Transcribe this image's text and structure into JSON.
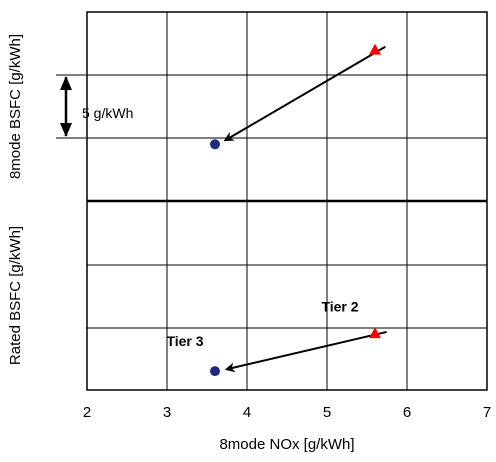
{
  "chart_data": {
    "type": "scatter",
    "x_axis": {
      "label": "8mode NOx [g/kWh]",
      "range": [
        2,
        7
      ],
      "ticks": [
        "2",
        "3",
        "4",
        "5",
        "6",
        "7"
      ]
    },
    "panels": [
      {
        "ylabel": "8mode BSFC [g/kWh]",
        "scale_annotation": "5  g/kWh",
        "points": [
          {
            "x": 5.6,
            "y_rel": 0.8,
            "marker": "triangle",
            "color": "#ff0000"
          },
          {
            "x": 3.6,
            "y_rel": 0.3,
            "marker": "circle",
            "color": "#1f2a80"
          }
        ],
        "arrow": {
          "from": 0,
          "to": 1
        }
      },
      {
        "ylabel": "Rated BSFC [g/kWh]",
        "points": [
          {
            "x": 5.6,
            "y_rel": 0.3,
            "marker": "triangle",
            "color": "#ff0000",
            "label": "Tier 2"
          },
          {
            "x": 3.6,
            "y_rel": 0.1,
            "marker": "circle",
            "color": "#1f2a80",
            "label": "Tier 3"
          }
        ],
        "arrow": {
          "from": 0,
          "to": 1
        }
      }
    ],
    "grid": true
  }
}
